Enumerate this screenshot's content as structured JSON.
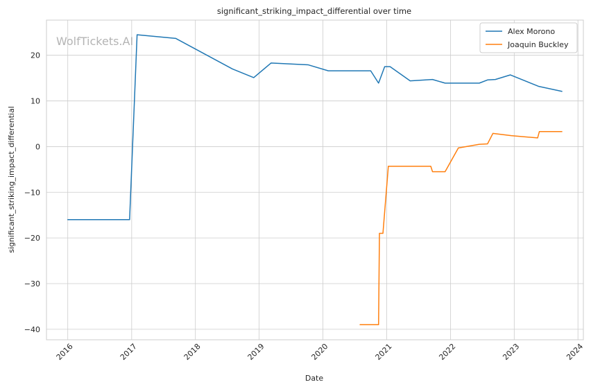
{
  "watermark": "WolfTickets.AI",
  "chart_data": {
    "type": "line",
    "title": "significant_striking_impact_differential over time",
    "xlabel": "Date",
    "ylabel": "significant_striking_impact_differential",
    "xlim": [
      "2015-09-01",
      "2024-02-01"
    ],
    "ylim": [
      -42.3,
      27.7
    ],
    "x_ticks": [
      "2016",
      "2017",
      "2018",
      "2019",
      "2020",
      "2021",
      "2022",
      "2023",
      "2024"
    ],
    "y_ticks": [
      -40,
      -30,
      -20,
      -10,
      0,
      10,
      20
    ],
    "y_tick_labels": [
      "−40",
      "−30",
      "−20",
      "−10",
      "0",
      "10",
      "20"
    ],
    "grid": true,
    "legend_position": "top-right",
    "series": [
      {
        "name": "Alex Morono",
        "color": "#1f77b4",
        "points": [
          [
            "2016-01-01",
            -16.0
          ],
          [
            "2016-12-20",
            -16.0
          ],
          [
            "2017-02-01",
            24.5
          ],
          [
            "2017-09-10",
            23.7
          ],
          [
            "2018-08-01",
            17.0
          ],
          [
            "2018-12-01",
            15.1
          ],
          [
            "2019-03-10",
            18.3
          ],
          [
            "2019-10-10",
            17.9
          ],
          [
            "2020-02-01",
            16.6
          ],
          [
            "2020-10-01",
            16.6
          ],
          [
            "2020-11-15",
            13.9
          ],
          [
            "2020-12-20",
            17.5
          ],
          [
            "2021-01-20",
            17.5
          ],
          [
            "2021-05-15",
            14.4
          ],
          [
            "2021-09-20",
            14.7
          ],
          [
            "2021-12-01",
            13.9
          ],
          [
            "2022-06-15",
            13.9
          ],
          [
            "2022-08-01",
            14.6
          ],
          [
            "2022-09-15",
            14.7
          ],
          [
            "2022-12-10",
            15.7
          ],
          [
            "2023-05-20",
            13.2
          ],
          [
            "2023-10-01",
            12.1
          ]
        ]
      },
      {
        "name": "Joaquin Buckley",
        "color": "#ff7f0e",
        "points": [
          [
            "2020-08-01",
            -39.0
          ],
          [
            "2020-11-15",
            -39.0
          ],
          [
            "2020-11-20",
            -19.0
          ],
          [
            "2020-12-10",
            -19.0
          ],
          [
            "2021-01-10",
            -4.3
          ],
          [
            "2021-09-10",
            -4.3
          ],
          [
            "2021-09-20",
            -5.5
          ],
          [
            "2021-12-01",
            -5.5
          ],
          [
            "2022-02-15",
            -0.3
          ],
          [
            "2022-06-15",
            0.5
          ],
          [
            "2022-08-01",
            0.6
          ],
          [
            "2022-09-01",
            2.9
          ],
          [
            "2022-12-15",
            2.4
          ],
          [
            "2023-05-15",
            1.9
          ],
          [
            "2023-05-25",
            3.3
          ],
          [
            "2023-10-01",
            3.3
          ]
        ]
      }
    ]
  }
}
